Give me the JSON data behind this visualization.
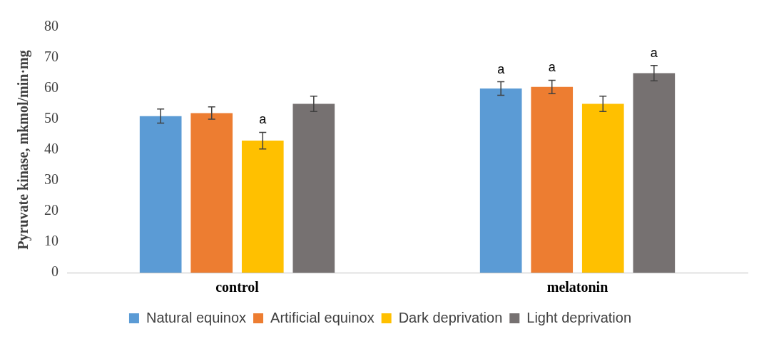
{
  "chart_data": {
    "type": "bar",
    "ylabel": "Pyruvate kinase, mkmol/min·mg",
    "categories": [
      "control",
      "melatonin"
    ],
    "series": [
      {
        "name": "Natural equinox",
        "color": "#5b9bd5",
        "values": [
          51,
          60
        ],
        "errors": [
          2.3,
          2.2
        ],
        "value_labels": [
          null,
          "a"
        ]
      },
      {
        "name": "Artificial equinox",
        "color": "#ed7d31",
        "values": [
          52,
          60.5
        ],
        "errors": [
          2,
          2.2
        ],
        "value_labels": [
          null,
          "a"
        ]
      },
      {
        "name": "Dark deprivation",
        "color": "#ffc000",
        "values": [
          43,
          55
        ],
        "errors": [
          2.7,
          2.5
        ],
        "value_labels": [
          "a",
          null
        ]
      },
      {
        "name": "Light deprivation",
        "color": "#767171",
        "values": [
          55,
          65
        ],
        "errors": [
          2.5,
          2.5
        ],
        "value_labels": [
          null,
          "a"
        ]
      }
    ],
    "ylim": [
      0,
      80
    ],
    "yticks": [
      0,
      10,
      20,
      30,
      40,
      50,
      60,
      70,
      80
    ],
    "grid": false,
    "legend": "bottom"
  }
}
